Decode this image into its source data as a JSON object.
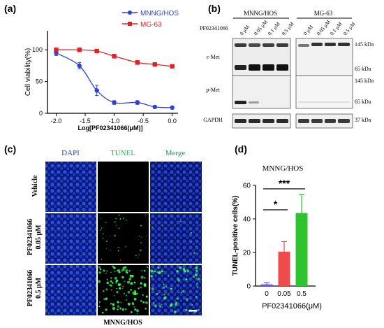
{
  "panels": {
    "a": "(a)",
    "b": "(b)",
    "c": "(c)",
    "d": "(d)"
  },
  "colors": {
    "mnng": "#2f3fd9",
    "mg63": "#e32222",
    "ctrl_bar": "#6b5be6",
    "low_bar": "#f04a4a",
    "high_bar": "#2ec42e",
    "dapi": "#2040c8",
    "tunel": "#22bb44",
    "merge": "#1a9a5a"
  },
  "chart_data": [
    {
      "type": "scatter",
      "title": "",
      "xlabel": "Log[PF02341066(μM)]",
      "ylabel": "Cell viability(%)",
      "xlim": [
        -2.15,
        0.1
      ],
      "ylim": [
        0,
        130
      ],
      "xticks": [
        "-2.0",
        "-1.5",
        "-1.0",
        "-0.5",
        "0.0"
      ],
      "yticks": [
        "0",
        "50",
        "100"
      ],
      "legend_position": "top-right",
      "series": [
        {
          "name": "MNNG/HOS",
          "color": "#2f3fd9",
          "marker": "circle",
          "x": [
            -2.0,
            -1.6,
            -1.3,
            -1.0,
            -0.6,
            -0.3,
            0.0
          ],
          "y": [
            95,
            75,
            36,
            17,
            17,
            10,
            9
          ],
          "err": [
            4,
            5,
            8,
            3,
            3,
            2,
            1
          ]
        },
        {
          "name": "MG-63",
          "color": "#e32222",
          "marker": "square",
          "x": [
            -2.0,
            -1.6,
            -1.3,
            -1.0,
            -0.6,
            -0.3,
            0.0
          ],
          "y": [
            100,
            100,
            98,
            90,
            80,
            77,
            74
          ],
          "err": [
            1,
            2,
            2,
            3,
            3,
            2,
            2
          ]
        }
      ]
    },
    {
      "type": "bar",
      "title": "MNNG/HOS",
      "xlabel": "PF02341066(μM)",
      "ylabel": "TUNEL-positive cells(%)",
      "categories": [
        "0",
        "0.05",
        "0.5"
      ],
      "values": [
        1,
        20.5,
        43.5
      ],
      "errors": [
        1,
        6,
        11
      ],
      "ylim": [
        0,
        60
      ],
      "yticks": [
        "0",
        "20",
        "40",
        "60"
      ],
      "significance": [
        {
          "from": 0,
          "to": 1,
          "label": "*"
        },
        {
          "from": 0,
          "to": 2,
          "label": "***"
        }
      ]
    }
  ],
  "blot": {
    "treatment": "PF02341066",
    "groups": [
      "MNNG/HOS",
      "MG-63"
    ],
    "lanes": [
      "0 μM",
      "0.05 μM",
      "0.1 μM",
      "0.5 μM",
      "0 μM",
      "0.05 μM",
      "0.1 μM",
      "0.5 μM"
    ],
    "rows": [
      "c-Met",
      "p-Met",
      "GAPDH"
    ],
    "markers": [
      "145 kDa",
      "65 kDa",
      "145 kDa",
      "65 kDa",
      "37 kDa"
    ]
  },
  "microscopy": {
    "columns": [
      "DAPI",
      "TUNEL",
      "Merge"
    ],
    "rows": [
      {
        "line1": "Vehicle",
        "line2": ""
      },
      {
        "line1": "PF02341066",
        "line2": "0.05 μM"
      },
      {
        "line1": "PF02341066",
        "line2": "0.5 μM"
      }
    ],
    "caption": "MNNG/HOS"
  }
}
